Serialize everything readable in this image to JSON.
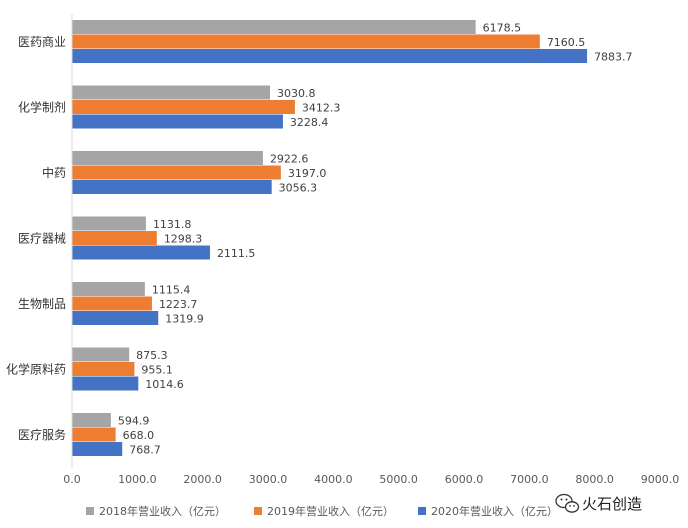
{
  "chart_data": {
    "type": "bar",
    "orientation": "horizontal",
    "categories": [
      "医药商业",
      "化学制剂",
      "中药",
      "医疗器械",
      "生物制品",
      "化学原料药",
      "医疗服务"
    ],
    "series": [
      {
        "name": "2018年营业收入（亿元）",
        "color": "#a5a5a5",
        "values": [
          6178.5,
          3030.8,
          2922.6,
          1131.8,
          1115.4,
          875.3,
          594.9
        ],
        "labels": [
          "6178.5",
          "3030.8",
          "2922.6",
          "1131.8",
          "1115.4",
          "875.3",
          "594.9"
        ]
      },
      {
        "name": "2019年营业收入（亿元）",
        "color": "#ed7d31",
        "values": [
          7160.5,
          3412.3,
          3197.0,
          1298.3,
          1223.7,
          955.1,
          668.0
        ],
        "labels": [
          "7160.5",
          "3412.3",
          "3197.0",
          "1298.3",
          "1223.7",
          "955.1",
          "668.0"
        ]
      },
      {
        "name": "2020年营业收入（亿元）",
        "color": "#4472c4",
        "values": [
          7883.7,
          3228.4,
          3056.3,
          2111.5,
          1319.9,
          1014.6,
          768.7
        ],
        "labels": [
          "7883.7",
          "3228.4",
          "3056.3",
          "2111.5",
          "1319.9",
          "1014.6",
          "768.7"
        ]
      }
    ],
    "xlim": [
      0,
      9000
    ],
    "xticks": [
      "0.0",
      "1000.0",
      "2000.0",
      "3000.0",
      "4000.0",
      "5000.0",
      "6000.0",
      "7000.0",
      "8000.0",
      "9000.0"
    ],
    "title": "",
    "xlabel": "",
    "ylabel": "",
    "grid": false,
    "legend_position": "bottom"
  },
  "watermark": {
    "text": "火石创造",
    "icon": "wechat-icon"
  }
}
